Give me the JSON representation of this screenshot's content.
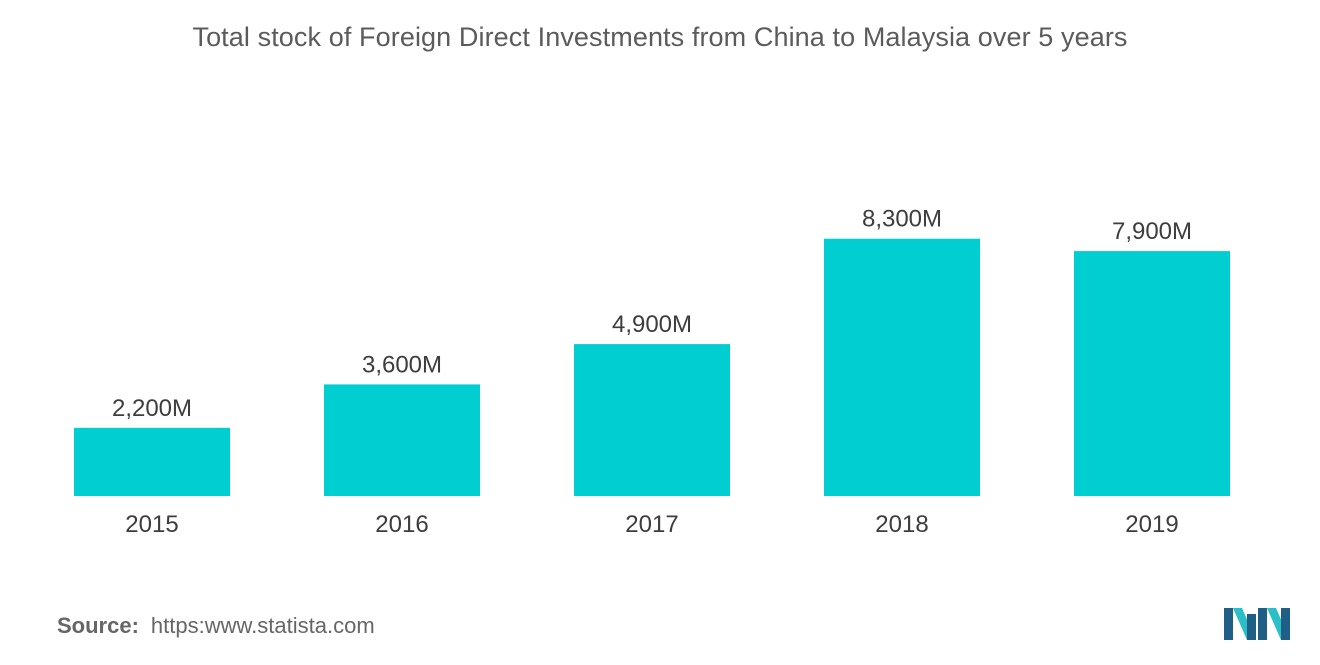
{
  "chart_data": {
    "type": "bar",
    "title": "Total stock of Foreign Direct Investments from China to Malaysia over 5 years",
    "categories": [
      "2015",
      "2016",
      "2017",
      "2018",
      "2019"
    ],
    "values": [
      2200,
      3600,
      4900,
      8300,
      7900
    ],
    "value_labels": [
      "2,200M",
      "3,600M",
      "4,900M",
      "8,300M",
      "7,900M"
    ],
    "unit": "M",
    "ylim": [
      0,
      10000
    ],
    "grid": false,
    "legend": "none",
    "bar_color": "#00ced1",
    "xlabel": "",
    "ylabel": ""
  },
  "source": {
    "label": "Source:",
    "text": "https:www.statista.com"
  },
  "colors": {
    "title": "#5b5b5b",
    "label": "#3d3d3d",
    "logo_dark": "#1f5f86",
    "logo_light": "#2bc0c8"
  },
  "logo": {
    "icon": "mordor-intelligence-logo-icon"
  }
}
